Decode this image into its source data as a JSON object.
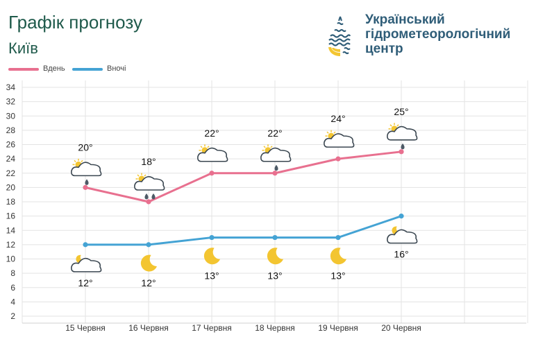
{
  "header": {
    "title": "Графік прогнозу",
    "city": "Київ"
  },
  "brand": {
    "line1": "Український",
    "line2": "гідрометеорологічний",
    "line3": "центр"
  },
  "colors": {
    "day": "#e8708f",
    "night": "#44a3d4",
    "grid": "#e3e3e3",
    "title": "#1f5a4b"
  },
  "chart_data": {
    "type": "line",
    "title": "Графік прогнозу",
    "subtitle": "Київ",
    "categories": [
      "15 Червня",
      "16 Червня",
      "17 Червня",
      "18 Червня",
      "19 Червня",
      "20 Червня"
    ],
    "series": [
      {
        "name": "Вдень",
        "values": [
          20,
          18,
          22,
          22,
          24,
          25
        ],
        "labels": [
          "20°",
          "18°",
          "22°",
          "22°",
          "24°",
          "25°"
        ],
        "icons": [
          "partly-cloudy-light-rain-icon",
          "partly-cloudy-rain-icon",
          "partly-cloudy-icon",
          "partly-cloudy-light-rain-icon",
          "partly-cloudy-icon",
          "partly-cloudy-light-rain-icon"
        ]
      },
      {
        "name": "Вночі",
        "values": [
          12,
          12,
          13,
          13,
          13,
          16
        ],
        "labels": [
          "12°",
          "12°",
          "13°",
          "13°",
          "13°",
          "16°"
        ],
        "icons": [
          "moon-cloud-icon",
          "moon-icon",
          "moon-icon",
          "moon-icon",
          "moon-icon",
          "moon-cloud-icon"
        ]
      }
    ],
    "y_ticks": [
      2,
      4,
      6,
      8,
      10,
      12,
      14,
      16,
      18,
      20,
      22,
      24,
      26,
      28,
      30,
      32,
      34
    ],
    "ylim": [
      2,
      34
    ],
    "grid": true,
    "legend": "top-left"
  }
}
